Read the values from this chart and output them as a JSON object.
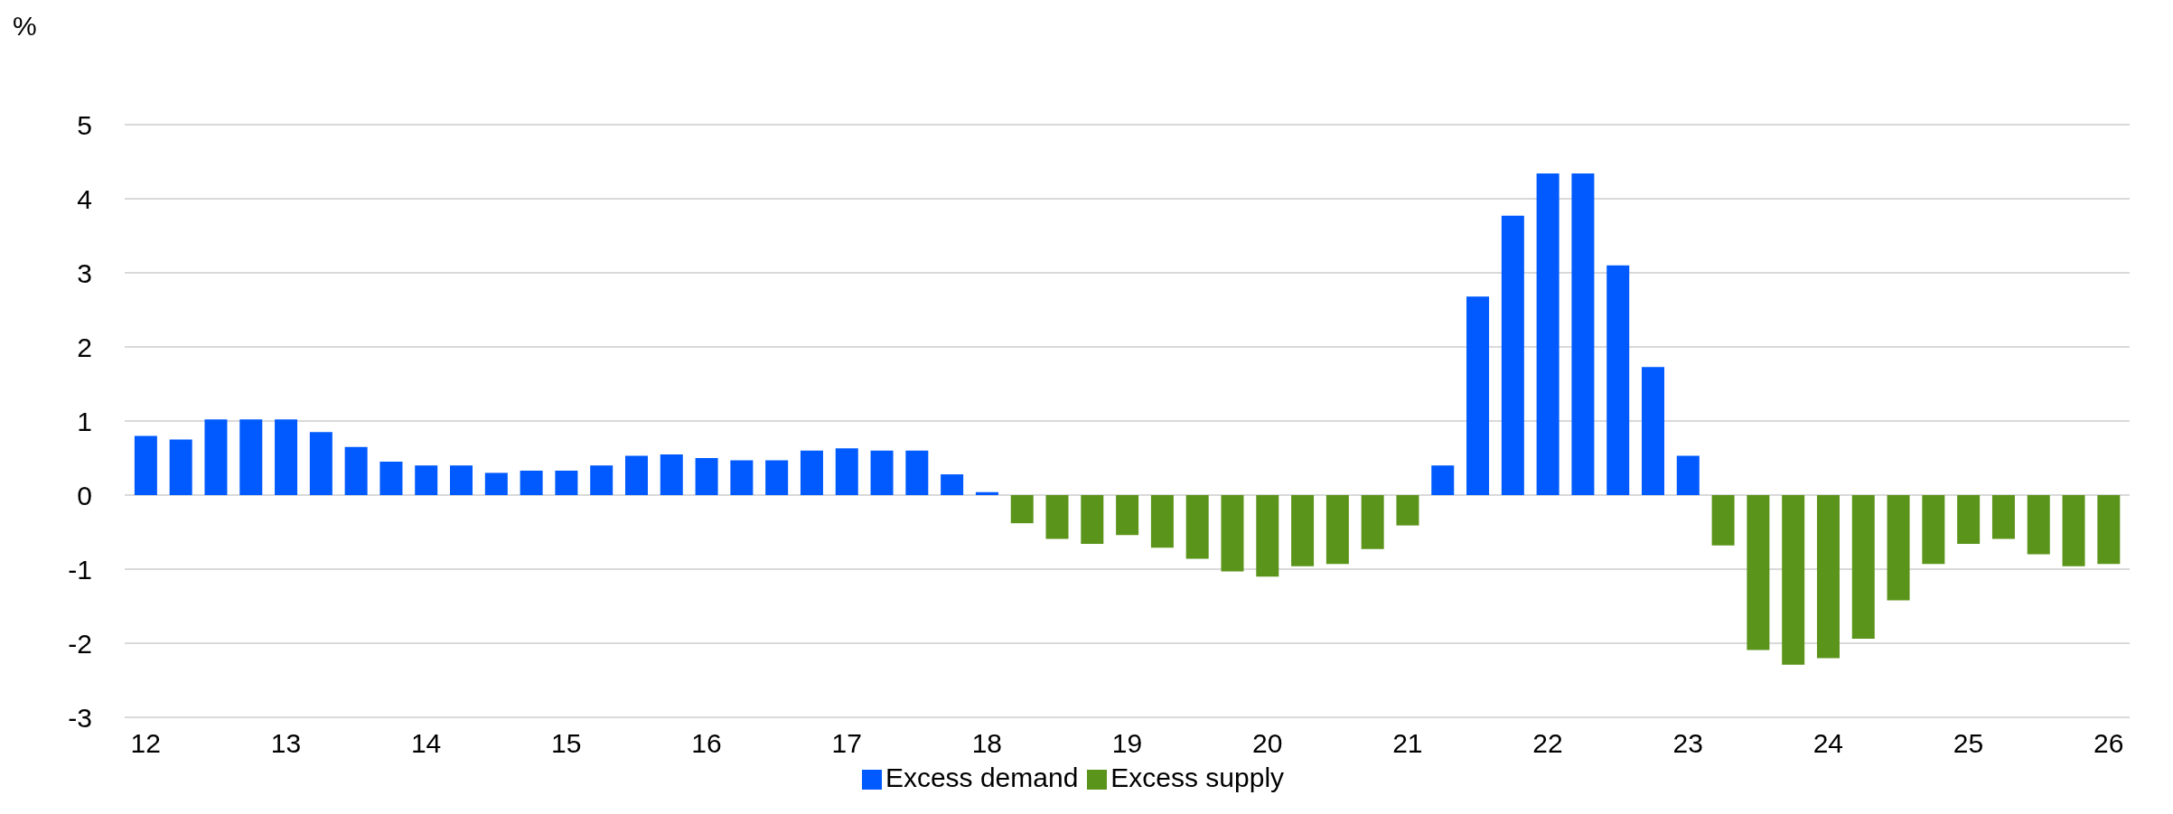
{
  "chart_data": {
    "type": "bar",
    "ylabel": "%",
    "stacked": true,
    "x": [
      12,
      12.25,
      12.5,
      12.75,
      13,
      13.25,
      13.5,
      13.75,
      14,
      14.25,
      14.5,
      14.75,
      15,
      15.25,
      15.5,
      15.75,
      16,
      16.25,
      16.5,
      16.75,
      17,
      17.25,
      17.5,
      17.75,
      18,
      18.25,
      18.5,
      18.75,
      19,
      19.25,
      19.5,
      19.75,
      20,
      20.25,
      20.5,
      20.75,
      21,
      21.25,
      21.5,
      21.75,
      22,
      22.25,
      22.5,
      22.75,
      23,
      23.25,
      23.5,
      23.75,
      24,
      24.25,
      24.5,
      24.75,
      25,
      25.25,
      25.5,
      25.75,
      26
    ],
    "series": [
      {
        "name": "Excess demand",
        "color": "#005aff",
        "values": [
          0.8,
          0.75,
          1.02,
          1.02,
          1.02,
          0.85,
          0.65,
          0.45,
          0.4,
          0.4,
          0.3,
          0.33,
          0.33,
          0.4,
          0.53,
          0.55,
          0.5,
          0.47,
          0.47,
          0.6,
          0.63,
          0.6,
          0.6,
          0.28,
          0.04,
          null,
          null,
          null,
          null,
          null,
          null,
          null,
          null,
          null,
          null,
          null,
          null,
          0.4,
          2.68,
          3.77,
          4.34,
          4.34,
          3.1,
          1.73,
          0.53,
          null,
          null,
          null,
          null,
          null,
          null,
          null,
          null,
          null,
          null,
          null,
          null
        ]
      },
      {
        "name": "Excess supply",
        "color": "#5b941b",
        "values": [
          null,
          null,
          null,
          null,
          null,
          null,
          null,
          null,
          null,
          null,
          null,
          null,
          null,
          null,
          null,
          null,
          null,
          null,
          null,
          null,
          null,
          null,
          null,
          null,
          null,
          -0.38,
          -0.59,
          -0.66,
          -0.54,
          -0.71,
          -0.86,
          -1.03,
          -1.1,
          -0.96,
          -0.93,
          -0.73,
          -0.41,
          null,
          null,
          null,
          null,
          null,
          null,
          null,
          null,
          -0.68,
          -2.09,
          -2.29,
          -2.2,
          -1.94,
          -1.42,
          -0.93,
          -0.66,
          -0.59,
          -0.8,
          -0.96,
          -0.93
        ]
      }
    ],
    "xlim": [
      11.85,
      26.15
    ],
    "xticks": [
      12,
      13,
      14,
      15,
      16,
      17,
      18,
      19,
      20,
      21,
      22,
      23,
      24,
      25,
      26
    ],
    "ylim": [
      -3,
      5
    ],
    "yticks": [
      -3,
      -2,
      -1,
      0,
      1,
      2,
      3,
      4,
      5
    ],
    "grid": "y",
    "legend": "bottom"
  }
}
